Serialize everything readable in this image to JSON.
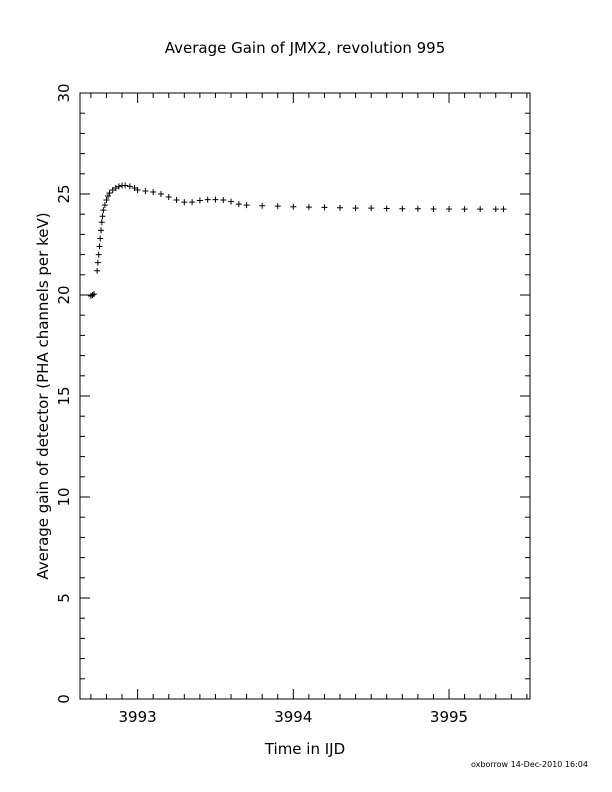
{
  "chart_data": {
    "type": "scatter",
    "marker": "plus",
    "title": "Average Gain of JMX2, revolution 995",
    "xlabel": "Time in IJD",
    "ylabel": "Average gain of detector (PHA channels per keV)",
    "xlim": [
      3992.63,
      3995.52
    ],
    "ylim": [
      0,
      30
    ],
    "x_ticks": [
      3993,
      3994,
      3995
    ],
    "x_tick_labels": [
      "3993",
      "3994",
      "3995"
    ],
    "y_ticks": [
      0,
      5,
      10,
      15,
      20,
      25,
      30
    ],
    "y_tick_labels": [
      "0",
      "5",
      "10",
      "15",
      "20",
      "25",
      "30"
    ],
    "grid": false,
    "legend": "none",
    "series": [
      {
        "points": [
          [
            3992.7,
            19.95
          ],
          [
            3992.71,
            20.0
          ],
          [
            3992.72,
            20.05
          ],
          [
            3992.74,
            21.2
          ],
          [
            3992.745,
            21.6
          ],
          [
            3992.75,
            22.0
          ],
          [
            3992.755,
            22.4
          ],
          [
            3992.76,
            22.8
          ],
          [
            3992.765,
            23.2
          ],
          [
            3992.77,
            23.6
          ],
          [
            3992.775,
            23.9
          ],
          [
            3992.78,
            24.2
          ],
          [
            3992.79,
            24.45
          ],
          [
            3992.8,
            24.7
          ],
          [
            3992.81,
            24.9
          ],
          [
            3992.82,
            25.05
          ],
          [
            3992.84,
            25.2
          ],
          [
            3992.86,
            25.3
          ],
          [
            3992.88,
            25.38
          ],
          [
            3992.9,
            25.42
          ],
          [
            3992.92,
            25.42
          ],
          [
            3992.95,
            25.38
          ],
          [
            3992.98,
            25.3
          ],
          [
            3993.0,
            25.2
          ],
          [
            3993.05,
            25.15
          ],
          [
            3993.1,
            25.1
          ],
          [
            3993.15,
            25.0
          ],
          [
            3993.2,
            24.85
          ],
          [
            3993.25,
            24.7
          ],
          [
            3993.3,
            24.6
          ],
          [
            3993.35,
            24.6
          ],
          [
            3993.4,
            24.68
          ],
          [
            3993.45,
            24.72
          ],
          [
            3993.5,
            24.72
          ],
          [
            3993.55,
            24.7
          ],
          [
            3993.6,
            24.62
          ],
          [
            3993.65,
            24.5
          ],
          [
            3993.7,
            24.45
          ],
          [
            3993.8,
            24.42
          ],
          [
            3993.9,
            24.4
          ],
          [
            3994.0,
            24.37
          ],
          [
            3994.1,
            24.35
          ],
          [
            3994.2,
            24.34
          ],
          [
            3994.3,
            24.32
          ],
          [
            3994.4,
            24.3
          ],
          [
            3994.5,
            24.3
          ],
          [
            3994.6,
            24.28
          ],
          [
            3994.7,
            24.27
          ],
          [
            3994.8,
            24.27
          ],
          [
            3994.9,
            24.26
          ],
          [
            3995.0,
            24.26
          ],
          [
            3995.1,
            24.25
          ],
          [
            3995.2,
            24.25
          ],
          [
            3995.3,
            24.25
          ],
          [
            3995.35,
            24.25
          ]
        ]
      }
    ]
  },
  "footer_text": "oxborrow 14-Dec-2010 16:04"
}
